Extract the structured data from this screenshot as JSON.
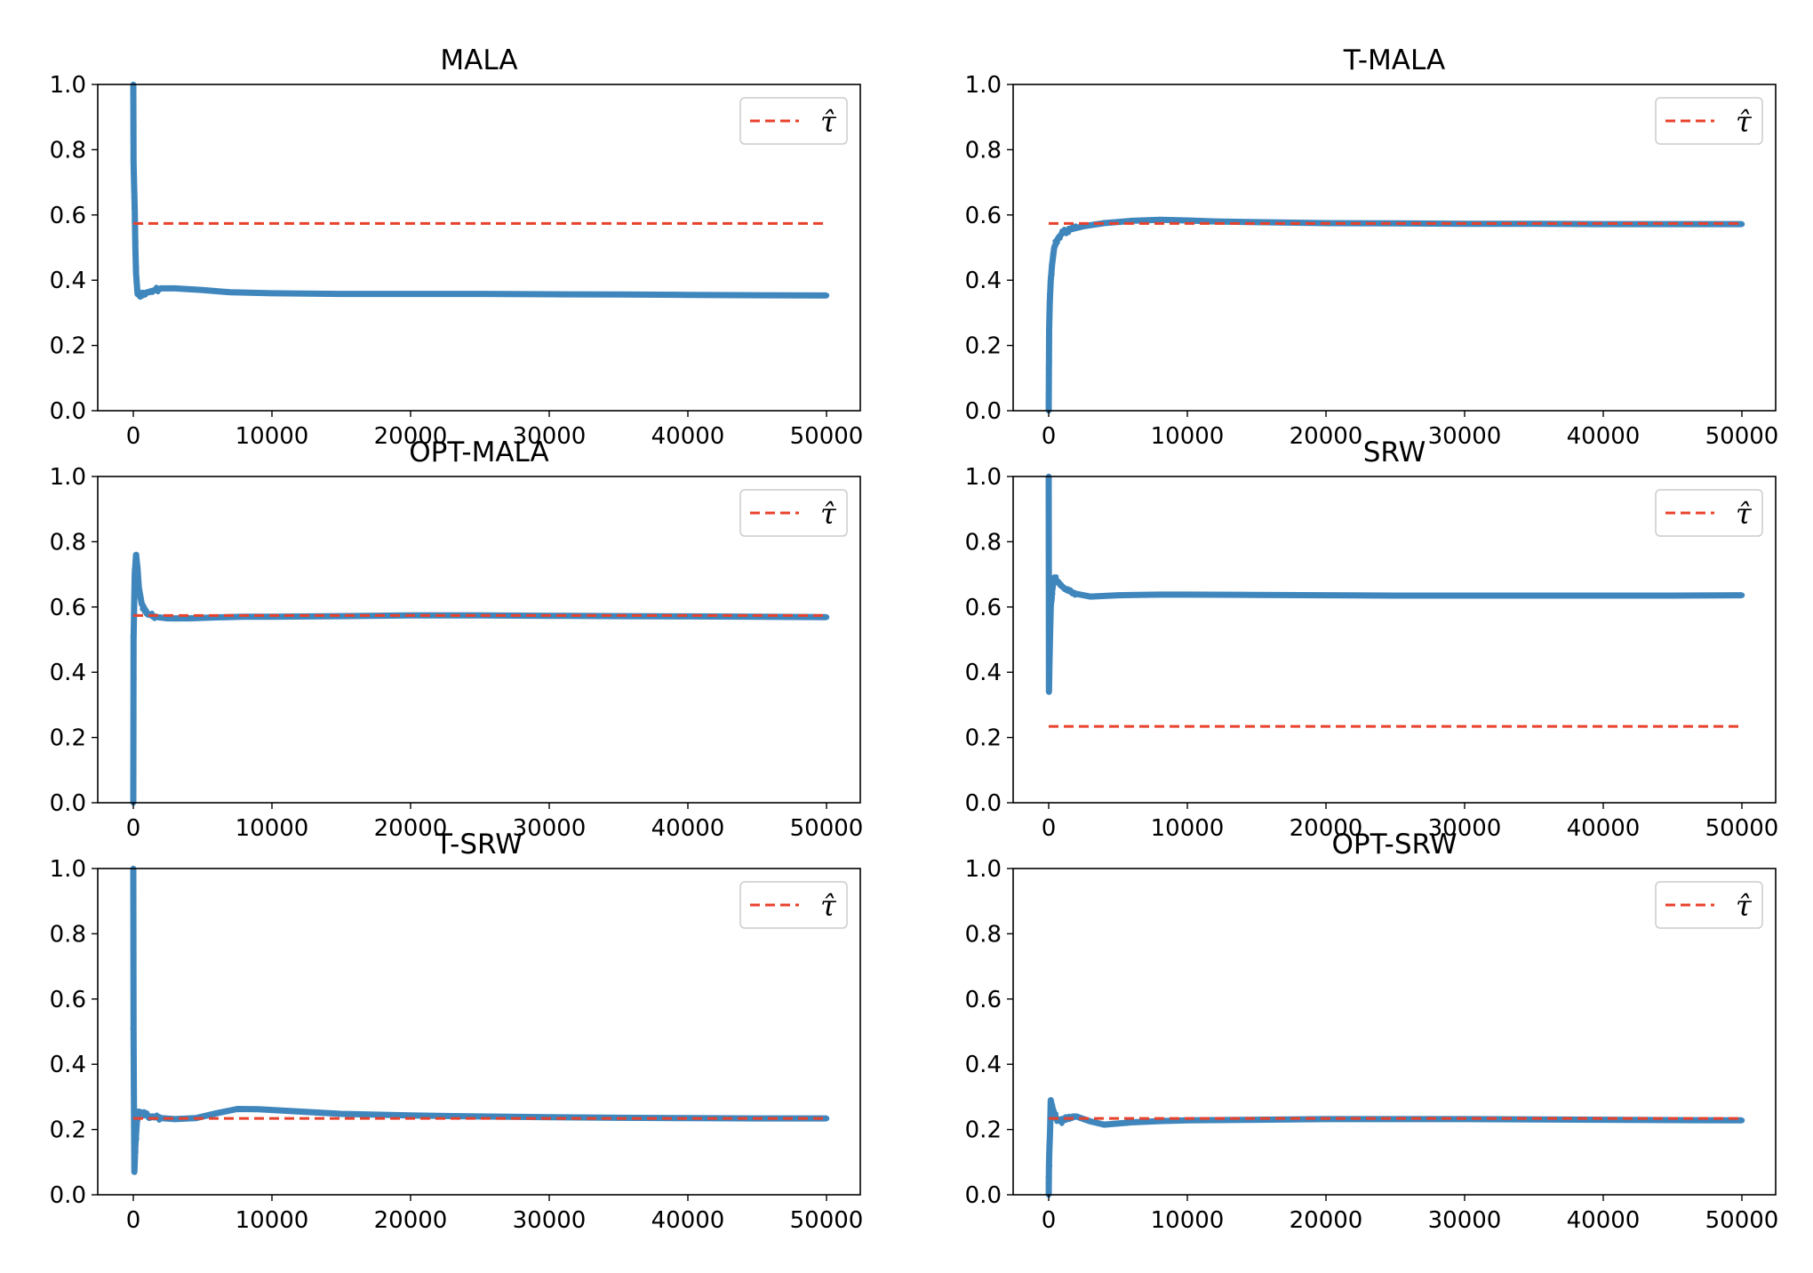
{
  "chart_data": [
    {
      "type": "scatter",
      "title": "MALA",
      "xlim": [
        0,
        50000
      ],
      "ylim": [
        0.0,
        1.0
      ],
      "xticks": [
        0,
        10000,
        20000,
        30000,
        40000,
        50000
      ],
      "yticks": [
        0.0,
        0.2,
        0.4,
        0.6,
        0.8,
        1.0
      ],
      "legend": {
        "position": "top-right",
        "entries": [
          "τ̂"
        ]
      },
      "reference_line": {
        "label": "τ̂",
        "y": 0.574,
        "color": "#e8412c",
        "style": "dashed"
      },
      "series": [
        {
          "color": "#3f86bd",
          "x": [
            0,
            20,
            50,
            100,
            150,
            200,
            300,
            500,
            800,
            1200,
            2000,
            3000,
            5000,
            7000,
            10000,
            15000,
            20000,
            25000,
            30000,
            35000,
            40000,
            45000,
            50000
          ],
          "y": [
            1.0,
            0.76,
            0.7,
            0.62,
            0.5,
            0.42,
            0.36,
            0.35,
            0.36,
            0.365,
            0.375,
            0.375,
            0.37,
            0.363,
            0.36,
            0.358,
            0.358,
            0.358,
            0.357,
            0.356,
            0.355,
            0.354,
            0.353
          ]
        }
      ]
    },
    {
      "type": "scatter",
      "title": "T-MALA",
      "xlim": [
        0,
        50000
      ],
      "ylim": [
        0.0,
        1.0
      ],
      "xticks": [
        0,
        10000,
        20000,
        30000,
        40000,
        50000
      ],
      "yticks": [
        0.0,
        0.2,
        0.4,
        0.6,
        0.8,
        1.0
      ],
      "legend": {
        "position": "top-right",
        "entries": [
          "τ̂"
        ]
      },
      "reference_line": {
        "label": "τ̂",
        "y": 0.574,
        "color": "#e8412c",
        "style": "dashed"
      },
      "series": [
        {
          "color": "#3f86bd",
          "x": [
            0,
            30,
            80,
            150,
            250,
            400,
            700,
            1000,
            1500,
            2500,
            4000,
            6000,
            8000,
            10000,
            12000,
            15000,
            20000,
            25000,
            30000,
            35000,
            40000,
            45000,
            50000
          ],
          "y": [
            0.0,
            0.25,
            0.33,
            0.4,
            0.45,
            0.5,
            0.53,
            0.545,
            0.555,
            0.565,
            0.575,
            0.582,
            0.585,
            0.583,
            0.58,
            0.578,
            0.575,
            0.574,
            0.573,
            0.573,
            0.572,
            0.572,
            0.572
          ]
        }
      ]
    },
    {
      "type": "scatter",
      "title": "OPT-MALA",
      "xlim": [
        0,
        50000
      ],
      "ylim": [
        0.0,
        1.0
      ],
      "xticks": [
        0,
        10000,
        20000,
        30000,
        40000,
        50000
      ],
      "yticks": [
        0.0,
        0.2,
        0.4,
        0.6,
        0.8,
        1.0
      ],
      "legend": {
        "position": "top-right",
        "entries": [
          "τ̂"
        ]
      },
      "reference_line": {
        "label": "τ̂",
        "y": 0.574,
        "color": "#e8412c",
        "style": "dashed"
      },
      "series": [
        {
          "color": "#3f86bd",
          "x": [
            0,
            20,
            50,
            100,
            200,
            300,
            400,
            600,
            1000,
            1500,
            2500,
            4000,
            6000,
            8000,
            10000,
            15000,
            20000,
            25000,
            30000,
            35000,
            40000,
            45000,
            50000
          ],
          "y": [
            0.0,
            0.5,
            0.58,
            0.7,
            0.76,
            0.72,
            0.66,
            0.61,
            0.58,
            0.57,
            0.565,
            0.565,
            0.568,
            0.57,
            0.57,
            0.572,
            0.574,
            0.574,
            0.573,
            0.572,
            0.571,
            0.57,
            0.569
          ]
        }
      ]
    },
    {
      "type": "scatter",
      "title": "SRW",
      "xlim": [
        0,
        50000
      ],
      "ylim": [
        0.0,
        1.0
      ],
      "xticks": [
        0,
        10000,
        20000,
        30000,
        40000,
        50000
      ],
      "yticks": [
        0.0,
        0.2,
        0.4,
        0.6,
        0.8,
        1.0
      ],
      "legend": {
        "position": "top-right",
        "entries": [
          "τ̂"
        ]
      },
      "reference_line": {
        "label": "τ̂",
        "y": 0.234,
        "color": "#e8412c",
        "style": "dashed"
      },
      "series": [
        {
          "color": "#3f86bd",
          "x": [
            0,
            20,
            50,
            100,
            150,
            250,
            400,
            600,
            900,
            1300,
            2000,
            3000,
            5000,
            8000,
            10000,
            15000,
            20000,
            25000,
            30000,
            35000,
            40000,
            45000,
            50000
          ],
          "y": [
            1.0,
            0.34,
            0.42,
            0.52,
            0.6,
            0.65,
            0.69,
            0.68,
            0.665,
            0.652,
            0.64,
            0.632,
            0.636,
            0.638,
            0.638,
            0.637,
            0.636,
            0.635,
            0.635,
            0.635,
            0.635,
            0.635,
            0.636
          ]
        }
      ]
    },
    {
      "type": "scatter",
      "title": "T-SRW",
      "xlim": [
        0,
        50000
      ],
      "ylim": [
        0.0,
        1.0
      ],
      "xticks": [
        0,
        10000,
        20000,
        30000,
        40000,
        50000
      ],
      "yticks": [
        0.0,
        0.2,
        0.4,
        0.6,
        0.8,
        1.0
      ],
      "legend": {
        "position": "top-right",
        "entries": [
          "τ̂"
        ]
      },
      "reference_line": {
        "label": "τ̂",
        "y": 0.234,
        "color": "#e8412c",
        "style": "dashed"
      },
      "series": [
        {
          "color": "#3f86bd",
          "x": [
            0,
            20,
            40,
            80,
            150,
            250,
            400,
            700,
            1200,
            2000,
            3000,
            4500,
            6000,
            7500,
            9000,
            12000,
            15000,
            20000,
            25000,
            30000,
            35000,
            40000,
            45000,
            50000
          ],
          "y": [
            1.0,
            0.5,
            0.33,
            0.07,
            0.15,
            0.22,
            0.255,
            0.25,
            0.24,
            0.235,
            0.232,
            0.235,
            0.25,
            0.263,
            0.262,
            0.255,
            0.248,
            0.243,
            0.24,
            0.238,
            0.236,
            0.235,
            0.234,
            0.234
          ]
        }
      ]
    },
    {
      "type": "scatter",
      "title": "OPT-SRW",
      "xlim": [
        0,
        50000
      ],
      "ylim": [
        0.0,
        1.0
      ],
      "xticks": [
        0,
        10000,
        20000,
        30000,
        40000,
        50000
      ],
      "yticks": [
        0.0,
        0.2,
        0.4,
        0.6,
        0.8,
        1.0
      ],
      "legend": {
        "position": "top-right",
        "entries": [
          "τ̂"
        ]
      },
      "reference_line": {
        "label": "τ̂",
        "y": 0.234,
        "color": "#e8412c",
        "style": "dashed"
      },
      "series": [
        {
          "color": "#3f86bd",
          "x": [
            0,
            20,
            50,
            100,
            150,
            250,
            400,
            600,
            900,
            1300,
            2000,
            3000,
            4000,
            6000,
            8000,
            10000,
            15000,
            20000,
            25000,
            30000,
            35000,
            40000,
            45000,
            50000
          ],
          "y": [
            0.0,
            0.09,
            0.14,
            0.2,
            0.29,
            0.27,
            0.25,
            0.23,
            0.225,
            0.235,
            0.24,
            0.225,
            0.215,
            0.222,
            0.226,
            0.228,
            0.23,
            0.232,
            0.232,
            0.232,
            0.231,
            0.23,
            0.229,
            0.228
          ]
        }
      ]
    }
  ]
}
